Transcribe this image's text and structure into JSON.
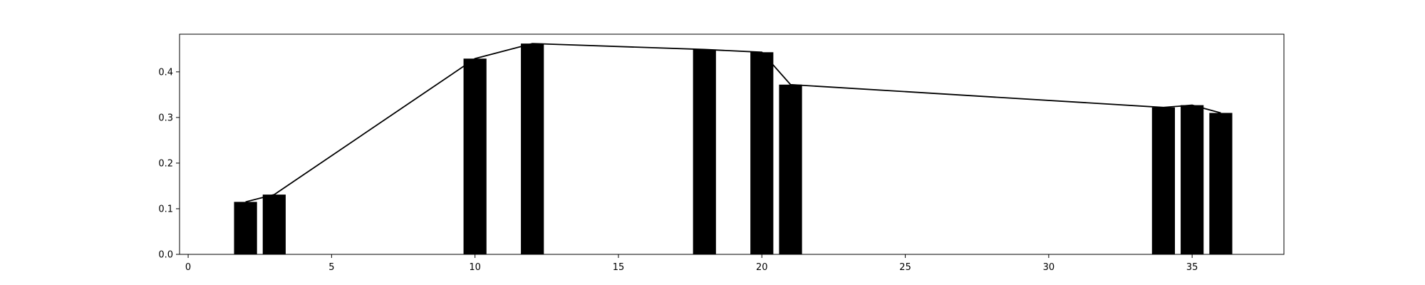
{
  "chart_data": {
    "type": "bar",
    "title": "",
    "xlabel": "",
    "ylabel": "",
    "xlim": [
      -0.3,
      38.2
    ],
    "ylim": [
      0.0,
      0.4825
    ],
    "xticks": [
      0,
      5,
      10,
      15,
      20,
      25,
      30,
      35
    ],
    "yticks": [
      0.0,
      0.1,
      0.2,
      0.3,
      0.4
    ],
    "ytick_labels": [
      "0.0",
      "0.1",
      "0.2",
      "0.3",
      "0.4"
    ],
    "xtick_labels": [
      "0",
      "5",
      "10",
      "15",
      "20",
      "25",
      "30",
      "35"
    ],
    "bar_width": 0.8,
    "grid": false,
    "legend": "none",
    "x": [
      2,
      3,
      10,
      12,
      18,
      20,
      21,
      34,
      35,
      36
    ],
    "values": [
      0.115,
      0.131,
      0.429,
      0.462,
      0.449,
      0.443,
      0.372,
      0.322,
      0.327,
      0.31
    ],
    "line": {
      "x": [
        2,
        3,
        10,
        12,
        18,
        20,
        21,
        34,
        35,
        36
      ],
      "y": [
        0.115,
        0.131,
        0.429,
        0.462,
        0.449,
        0.443,
        0.372,
        0.322,
        0.327,
        0.31
      ]
    },
    "colors": {
      "bar": "#000000",
      "line": "#000000",
      "axes": "#000000",
      "background": "#ffffff"
    }
  }
}
